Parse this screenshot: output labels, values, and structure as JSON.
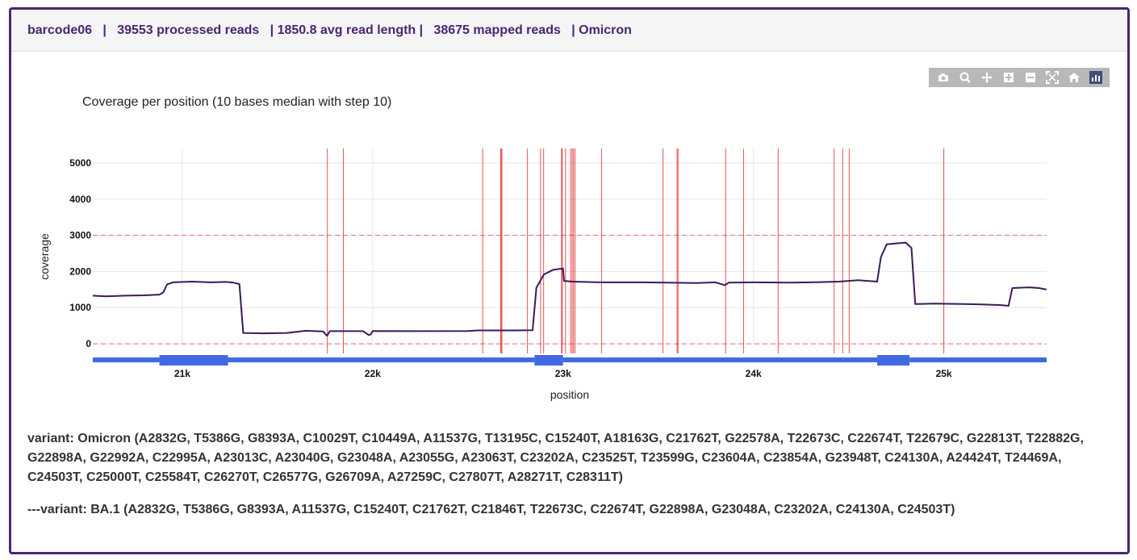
{
  "header": {
    "text": "barcode06   |   39553 processed reads   | 1850.8 avg read length |   38675 mapped reads   | Omicron"
  },
  "modebar": {
    "icons": [
      "camera-icon",
      "zoom-icon",
      "pan-icon",
      "zoom-in-icon",
      "zoom-out-icon",
      "autoscale-icon",
      "reset-axes-icon",
      "plotly-logo-icon"
    ]
  },
  "chart_data": {
    "type": "line",
    "title": "Coverage per position (10 bases median with step 10)",
    "xlabel": "position",
    "ylabel": "coverage",
    "xlim": [
      20530,
      25540
    ],
    "ylim": [
      -400,
      5400
    ],
    "x_ticks": [
      21000,
      22000,
      23000,
      24000,
      25000
    ],
    "x_tick_labels": [
      "21k",
      "22k",
      "23k",
      "24k",
      "25k"
    ],
    "y_ticks": [
      0,
      1000,
      2000,
      3000,
      4000,
      5000
    ],
    "y_tick_labels": [
      "0",
      "1000",
      "2000",
      "3000",
      "4000",
      "5000"
    ],
    "grid": true,
    "reference_lines": [
      3000,
      0
    ],
    "line_color": "#3b1a5a",
    "mutation_color": "#e31a1c",
    "coverage_points": [
      [
        20530,
        1330
      ],
      [
        20600,
        1310
      ],
      [
        20700,
        1330
      ],
      [
        20800,
        1340
      ],
      [
        20880,
        1360
      ],
      [
        20900,
        1420
      ],
      [
        20920,
        1640
      ],
      [
        20950,
        1700
      ],
      [
        21050,
        1720
      ],
      [
        21150,
        1700
      ],
      [
        21230,
        1710
      ],
      [
        21270,
        1690
      ],
      [
        21300,
        1650
      ],
      [
        21320,
        300
      ],
      [
        21420,
        290
      ],
      [
        21550,
        300
      ],
      [
        21650,
        360
      ],
      [
        21740,
        340
      ],
      [
        21760,
        220
      ],
      [
        21775,
        350
      ],
      [
        21950,
        350
      ],
      [
        21980,
        240
      ],
      [
        21990,
        260
      ],
      [
        22000,
        355
      ],
      [
        22200,
        350
      ],
      [
        22500,
        355
      ],
      [
        22550,
        370
      ],
      [
        22700,
        370
      ],
      [
        22840,
        375
      ],
      [
        22860,
        1550
      ],
      [
        22900,
        1920
      ],
      [
        22950,
        2050
      ],
      [
        23000,
        2080
      ],
      [
        23005,
        1740
      ],
      [
        23050,
        1720
      ],
      [
        23200,
        1700
      ],
      [
        23400,
        1700
      ],
      [
        23550,
        1690
      ],
      [
        23700,
        1680
      ],
      [
        23800,
        1700
      ],
      [
        23850,
        1620
      ],
      [
        23870,
        1690
      ],
      [
        24000,
        1700
      ],
      [
        24200,
        1690
      ],
      [
        24300,
        1700
      ],
      [
        24450,
        1720
      ],
      [
        24550,
        1760
      ],
      [
        24650,
        1720
      ],
      [
        24670,
        2400
      ],
      [
        24700,
        2750
      ],
      [
        24800,
        2800
      ],
      [
        24830,
        2650
      ],
      [
        24850,
        1100
      ],
      [
        24950,
        1110
      ],
      [
        25100,
        1100
      ],
      [
        25200,
        1090
      ],
      [
        25300,
        1070
      ],
      [
        25340,
        1050
      ],
      [
        25360,
        1540
      ],
      [
        25450,
        1560
      ],
      [
        25500,
        1540
      ],
      [
        25540,
        1500
      ]
    ],
    "mutations": [
      21762,
      21846,
      22578,
      22673,
      22674,
      22679,
      22813,
      22882,
      22898,
      22992,
      22995,
      23013,
      23040,
      23048,
      23055,
      23063,
      23202,
      23525,
      23599,
      23604,
      23854,
      23948,
      24130,
      24424,
      24469,
      24503,
      25000
    ],
    "gene_bar": [
      {
        "start": 20530,
        "end": 20880,
        "level": 0
      },
      {
        "start": 20880,
        "end": 21240,
        "level": 1
      },
      {
        "start": 21240,
        "end": 22850,
        "level": 0
      },
      {
        "start": 22850,
        "end": 23000,
        "level": 1
      },
      {
        "start": 23000,
        "end": 24650,
        "level": 0
      },
      {
        "start": 24650,
        "end": 24820,
        "level": 1
      },
      {
        "start": 24820,
        "end": 25540,
        "level": 0
      }
    ],
    "bar_color": "#4169e1"
  },
  "variants": {
    "line1": "variant: Omicron (A2832G, T5386G, G8393A, C10029T, C10449A, A11537G, T13195C, C15240T, A18163G, C21762T, G22578A, T22673C, C22674T, T22679C, G22813T, T22882G, G22898A, G22992A, C22995A, A23013C, A23040G, G23048A, A23055G, A23063T, C23202A, C23525T, T23599G, C23604A, C23854A, G23948T, C24130A, A24424T, T24469A, C24503T, C25000T, C25584T, C26270T, C26577G, G26709A, A27259C, C27807T, A28271T, C28311T)",
    "line2": "---variant: BA.1 (A2832G, T5386G, G8393A, A11537G, C15240T, C21762T, C21846T, T22673C, C22674T, G22898A, G23048A, C23202A, C24130A, C24503T)"
  }
}
